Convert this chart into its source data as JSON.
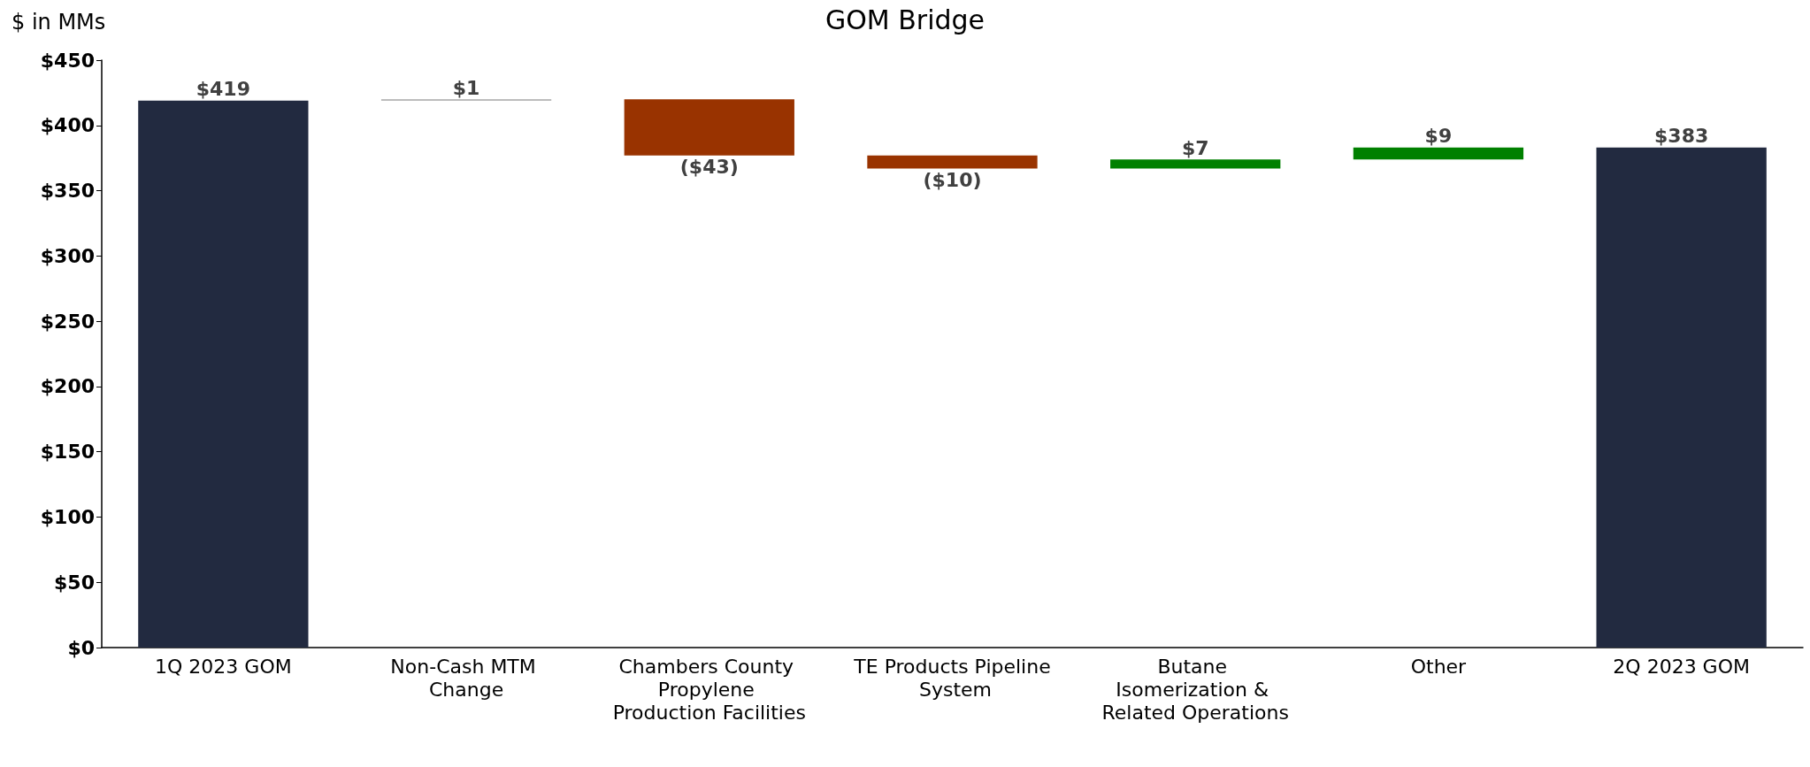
{
  "chart_data": {
    "type": "bar",
    "title": "GOM Bridge",
    "ylabel": "$ in MMs",
    "categories": [
      "1Q 2023 GOM",
      "Non-Cash MTM Change",
      "Chambers County Propylene Production Facilities",
      "TE Products Pipeline System",
      "Butane Isomerization & Related Operations",
      "Other",
      "2Q 2023 GOM"
    ],
    "values": [
      419,
      1,
      -43,
      -10,
      7,
      9,
      383
    ],
    "base": [
      0,
      419,
      420,
      377,
      367,
      374,
      0
    ],
    "colors": [
      "#222a40",
      "#a6a6a6",
      "#993300",
      "#993300",
      "#008000",
      "#008000",
      "#222a40"
    ],
    "value_labels": [
      "$419",
      "$1",
      "($43)",
      "($10)",
      "$7",
      "$9",
      "$383"
    ],
    "ylim": [
      0,
      450
    ],
    "yticks": [
      {
        "value": 0,
        "label": "$0"
      },
      {
        "value": 50,
        "label": "$50"
      },
      {
        "value": 100,
        "label": "$100"
      },
      {
        "value": 150,
        "label": "$150"
      },
      {
        "value": 200,
        "label": "$200"
      },
      {
        "value": 250,
        "label": "$250"
      },
      {
        "value": 300,
        "label": "$300"
      },
      {
        "value": 350,
        "label": "$350"
      },
      {
        "value": 400,
        "label": "$400"
      },
      {
        "value": 450,
        "label": "$450"
      }
    ],
    "grid": false
  }
}
